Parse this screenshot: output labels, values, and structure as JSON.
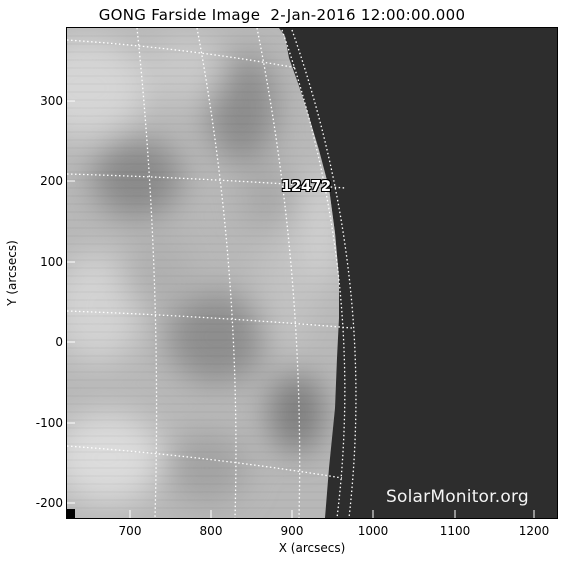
{
  "title": "GONG Farside Image  2-Jan-2016 12:00:00.000",
  "axes": {
    "xlabel": "X (arcsecs)",
    "ylabel": "Y (arcsecs)",
    "x_ticks": [
      "700",
      "800",
      "900",
      "1000",
      "1100",
      "1200"
    ],
    "y_ticks": [
      "300",
      "200",
      "100",
      "0",
      "-100",
      "-200"
    ],
    "xlim": [
      620,
      1230
    ],
    "ylim": [
      -220,
      390
    ]
  },
  "regions": [
    {
      "label": "12472"
    }
  ],
  "watermark": "SolarMonitor.org",
  "colors": {
    "background": "#2d2d2d",
    "grid": "#ffffff"
  }
}
